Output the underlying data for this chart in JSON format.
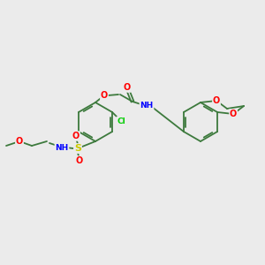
{
  "bg_color": "#ebebeb",
  "bond_color": "#3d7a3d",
  "atom_colors": {
    "O": "#ff0000",
    "N": "#0000ff",
    "S": "#cccc00",
    "Cl": "#00cc00",
    "C": "#3d7a3d"
  },
  "figsize": [
    3.0,
    3.0
  ],
  "dpi": 100,
  "lw": 1.3,
  "fs": 7.0,
  "ring_r": 22
}
